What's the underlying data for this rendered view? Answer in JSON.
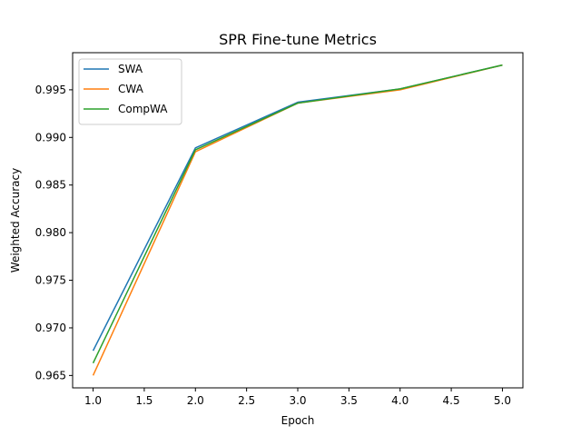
{
  "chart_data": {
    "type": "line",
    "title": "SPR Fine-tune Metrics",
    "xlabel": "Epoch",
    "ylabel": "Weighted Accuracy",
    "x": [
      1,
      2,
      3,
      4,
      5
    ],
    "xlim": [
      0.8,
      5.2
    ],
    "ylim": [
      0.9637,
      0.9989
    ],
    "xticks": [
      1.0,
      1.5,
      2.0,
      2.5,
      3.0,
      3.5,
      4.0,
      4.5,
      5.0
    ],
    "xtick_labels": [
      "1.0",
      "1.5",
      "2.0",
      "2.5",
      "3.0",
      "3.5",
      "4.0",
      "4.5",
      "5.0"
    ],
    "yticks": [
      0.965,
      0.97,
      0.975,
      0.98,
      0.985,
      0.99,
      0.995
    ],
    "ytick_labels": [
      "0.965",
      "0.970",
      "0.975",
      "0.980",
      "0.985",
      "0.990",
      "0.995"
    ],
    "grid": false,
    "legend_position": "upper-left",
    "series": [
      {
        "name": "SWA",
        "color": "#1f77b4",
        "values": [
          0.9676,
          0.9889,
          0.9937,
          0.9951,
          0.9976
        ]
      },
      {
        "name": "CWA",
        "color": "#ff7f0e",
        "values": [
          0.965,
          0.9885,
          0.9936,
          0.995,
          0.9976
        ]
      },
      {
        "name": "CompWA",
        "color": "#2ca02c",
        "values": [
          0.9663,
          0.9887,
          0.9936,
          0.9951,
          0.9976
        ]
      }
    ]
  }
}
